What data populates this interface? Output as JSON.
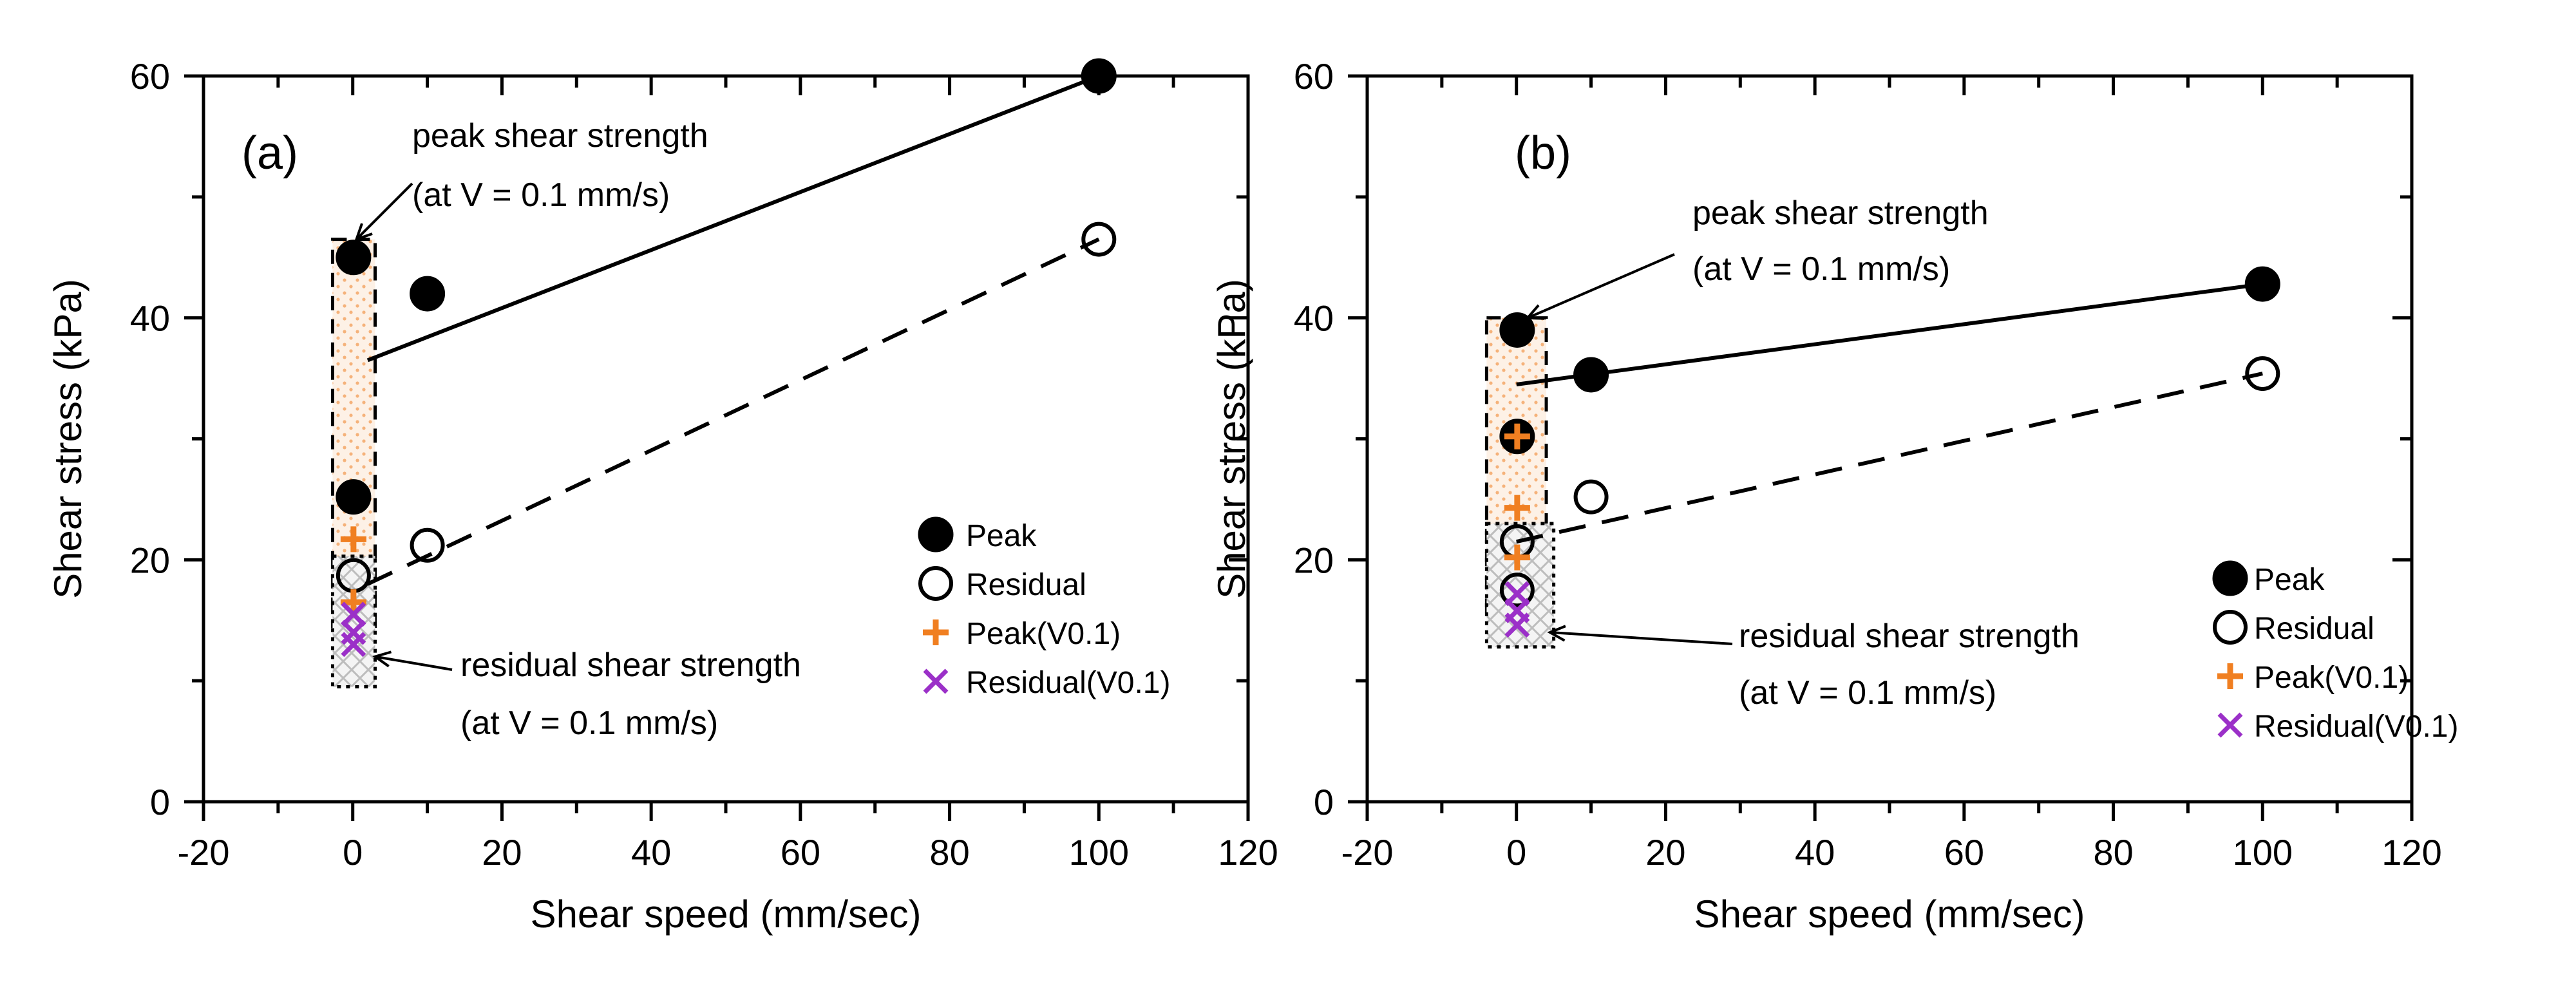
{
  "chart_data": [
    {
      "type": "scatter",
      "panel_label": "(a)",
      "xlabel": "Shear speed (mm/sec)",
      "ylabel": "Shear stress (kPa)",
      "xlim": [
        -20,
        120
      ],
      "ylim": [
        0,
        60
      ],
      "x_ticks": [
        -20,
        0,
        20,
        40,
        60,
        80,
        100,
        120
      ],
      "y_ticks": [
        0,
        20,
        40,
        60
      ],
      "x_tick_labels": [
        "-20",
        "0",
        "20",
        "40",
        "60",
        "80",
        "100",
        "120"
      ],
      "y_tick_labels": [
        "0",
        "20",
        "40",
        "60"
      ],
      "legend_position": "right-middle",
      "legend": [
        "Peak",
        "Residual",
        "Peak(V0.1)",
        "Residual(V0.1)"
      ],
      "series": [
        {
          "name": "Peak",
          "marker": "filled-circle",
          "color": "#000000",
          "points": [
            {
              "x": 0.1,
              "y": 45
            },
            {
              "x": 0.1,
              "y": 25.2
            },
            {
              "x": 10,
              "y": 42
            },
            {
              "x": 100,
              "y": 60
            }
          ]
        },
        {
          "name": "Residual",
          "marker": "open-circle",
          "color": "#000000",
          "points": [
            {
              "x": 0.1,
              "y": 18.7
            },
            {
              "x": 10,
              "y": 21.2
            },
            {
              "x": 100,
              "y": 46.5
            }
          ]
        },
        {
          "name": "Peak(V0.1)",
          "marker": "plus",
          "color": "#f07f21",
          "points": [
            {
              "x": 0.1,
              "y": 21.7
            },
            {
              "x": 0.1,
              "y": 16.5
            }
          ]
        },
        {
          "name": "Residual(V0.1)",
          "marker": "cross",
          "color": "#9b30c8",
          "points": [
            {
              "x": 0.1,
              "y": 15.5
            },
            {
              "x": 0.1,
              "y": 14
            },
            {
              "x": 0.1,
              "y": 13
            }
          ]
        }
      ],
      "trend_lines": [
        {
          "name": "Peak trend",
          "style": "solid",
          "from": [
            2,
            36.5
          ],
          "to": [
            100,
            60
          ]
        },
        {
          "name": "Residual trend",
          "style": "dashed",
          "from": [
            2,
            18
          ],
          "to": [
            100,
            46.5
          ]
        }
      ],
      "regions": [
        {
          "name": "peak-range",
          "x": [
            -2.7,
            3
          ],
          "y": [
            14.5,
            46.5
          ],
          "fill": "dotted-orange"
        },
        {
          "name": "residual-range",
          "x": [
            -2.7,
            3
          ],
          "y": [
            9.5,
            20.3
          ],
          "fill": "crosshatch-grey"
        }
      ],
      "annotations": [
        {
          "lines": [
            "peak shear strength",
            "(at V = 0.1 mm/s)"
          ],
          "points_to": [
            0.5,
            46.5
          ]
        },
        {
          "lines": [
            "residual shear strength",
            "(at V = 0.1 mm/s)"
          ],
          "points_to": [
            3,
            12
          ]
        }
      ]
    },
    {
      "type": "scatter",
      "panel_label": "(b)",
      "xlabel": "Shear speed (mm/sec)",
      "ylabel": "Shear stress (kPa)",
      "xlim": [
        -20,
        120
      ],
      "ylim": [
        0,
        60
      ],
      "x_ticks": [
        -20,
        0,
        20,
        40,
        60,
        80,
        100,
        120
      ],
      "y_ticks": [
        0,
        20,
        40,
        60
      ],
      "x_tick_labels": [
        "-20",
        "0",
        "20",
        "40",
        "60",
        "80",
        "100",
        "120"
      ],
      "y_tick_labels": [
        "0",
        "20",
        "40",
        "60"
      ],
      "legend_position": "right-middle",
      "legend": [
        "Peak",
        "Residual",
        "Peak(V0.1)",
        "Residual(V0.1)"
      ],
      "series": [
        {
          "name": "Peak",
          "marker": "filled-circle",
          "color": "#000000",
          "points": [
            {
              "x": 0.1,
              "y": 39
            },
            {
              "x": 0.1,
              "y": 30.2
            },
            {
              "x": 10,
              "y": 35.3
            },
            {
              "x": 100,
              "y": 42.8
            }
          ]
        },
        {
          "name": "Residual",
          "marker": "open-circle",
          "color": "#000000",
          "points": [
            {
              "x": 0.1,
              "y": 21.5
            },
            {
              "x": 0.1,
              "y": 17.5
            },
            {
              "x": 10,
              "y": 25.2
            },
            {
              "x": 100,
              "y": 35.4
            }
          ]
        },
        {
          "name": "Peak(V0.1)",
          "marker": "plus",
          "color": "#f07f21",
          "points": [
            {
              "x": 0.1,
              "y": 30.2
            },
            {
              "x": 0.1,
              "y": 24.3
            },
            {
              "x": 0.1,
              "y": 20.2
            }
          ]
        },
        {
          "name": "Residual(V0.1)",
          "marker": "cross",
          "color": "#9b30c8",
          "points": [
            {
              "x": 0.1,
              "y": 17.2
            },
            {
              "x": 0.1,
              "y": 15.8
            },
            {
              "x": 0.1,
              "y": 14.6
            }
          ]
        }
      ],
      "trend_lines": [
        {
          "name": "Peak trend",
          "style": "solid",
          "from": [
            0,
            34.5
          ],
          "to": [
            100,
            42.8
          ]
        },
        {
          "name": "Residual trend",
          "style": "dashed",
          "from": [
            0,
            21.5
          ],
          "to": [
            100,
            35.4
          ]
        }
      ],
      "regions": [
        {
          "name": "peak-range",
          "x": [
            -4,
            4
          ],
          "y": [
            15.5,
            40
          ],
          "fill": "dotted-orange"
        },
        {
          "name": "residual-range",
          "x": [
            -4,
            5
          ],
          "y": [
            12.8,
            23
          ],
          "fill": "crosshatch-grey"
        }
      ],
      "annotations": [
        {
          "lines": [
            "peak shear strength",
            "(at V = 0.1 mm/s)"
          ],
          "points_to": [
            1.5,
            40
          ]
        },
        {
          "lines": [
            "residual shear strength",
            "(at V = 0.1 mm/s)"
          ],
          "points_to": [
            4.5,
            14
          ]
        }
      ]
    }
  ]
}
